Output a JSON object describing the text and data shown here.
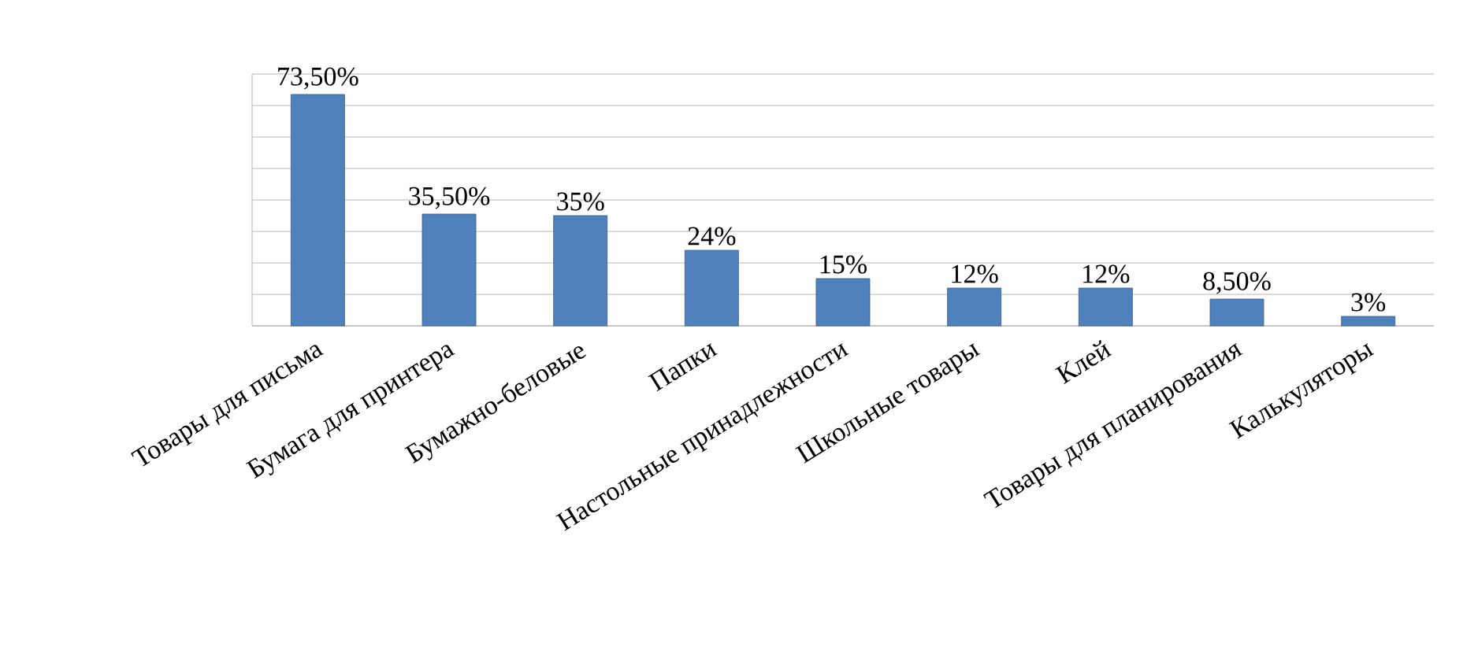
{
  "chart_data": {
    "type": "bar",
    "categories": [
      "Товары для письма",
      "Бумага для принтера",
      "Бумажно-беловые",
      "Папки",
      "Настольные принадлежности",
      "Школьные товары",
      "Клей",
      "Товары для планирования",
      "Калькуляторы"
    ],
    "values": [
      73.5,
      35.5,
      35,
      24,
      15,
      12,
      12,
      8.5,
      3
    ],
    "value_labels": [
      "73,50%",
      "35,50%",
      "35%",
      "24%",
      "15%",
      "12%",
      "12%",
      "8,50%",
      "3%"
    ],
    "color": "#4f81bd",
    "ylim": [
      0,
      80
    ],
    "yticks": [
      {
        "value": 0,
        "label": null
      },
      {
        "value": 10,
        "label": null
      },
      {
        "value": 20,
        "label": null
      },
      {
        "value": 30,
        "label": null
      },
      {
        "value": 40,
        "label": null
      },
      {
        "value": 50,
        "label": null
      },
      {
        "value": 60,
        "label": null
      },
      {
        "value": 70,
        "label": null
      },
      {
        "value": 80,
        "label": null
      }
    ],
    "grid": "y",
    "tick_labels": "x"
  }
}
